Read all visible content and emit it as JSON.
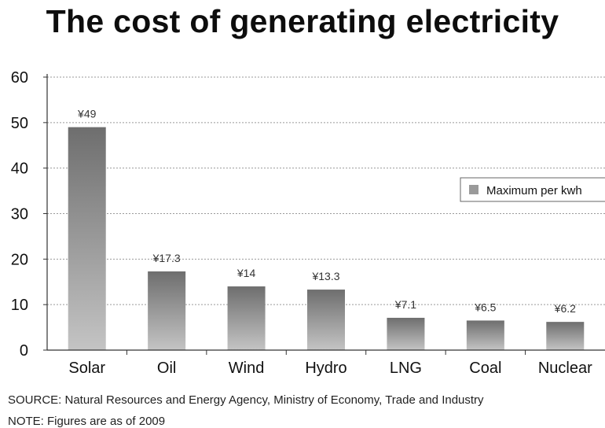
{
  "title": "The cost of generating electricity",
  "source": "SOURCE: Natural Resources and Energy Agency, Ministry of Economy, Trade and Industry",
  "note": "NOTE: Figures are as of 2009",
  "chart_data": {
    "type": "bar",
    "title": "The cost of generating electricity",
    "categories": [
      "Solar",
      "Oil",
      "Wind",
      "Hydro",
      "LNG",
      "Coal",
      "Nuclear"
    ],
    "series": [
      {
        "name": "Maximum per kwh",
        "values": [
          49,
          17.3,
          14,
          13.3,
          7.1,
          6.5,
          6.2
        ],
        "labels": [
          "¥49",
          "¥17.3",
          "¥14",
          "¥13.3",
          "¥7.1",
          "¥6.5",
          "¥6.2"
        ]
      }
    ],
    "xlabel": "",
    "ylabel": "",
    "ylim": [
      0,
      60
    ],
    "yticks": [
      0,
      10,
      20,
      30,
      40,
      50,
      60
    ],
    "grid": true,
    "legend_position": "right",
    "colors": {
      "bar_top": "#6e6e6e",
      "bar_bottom": "#c4c4c4",
      "legend_swatch": "#9a9a9a",
      "grid": "#9a9a9a"
    }
  }
}
